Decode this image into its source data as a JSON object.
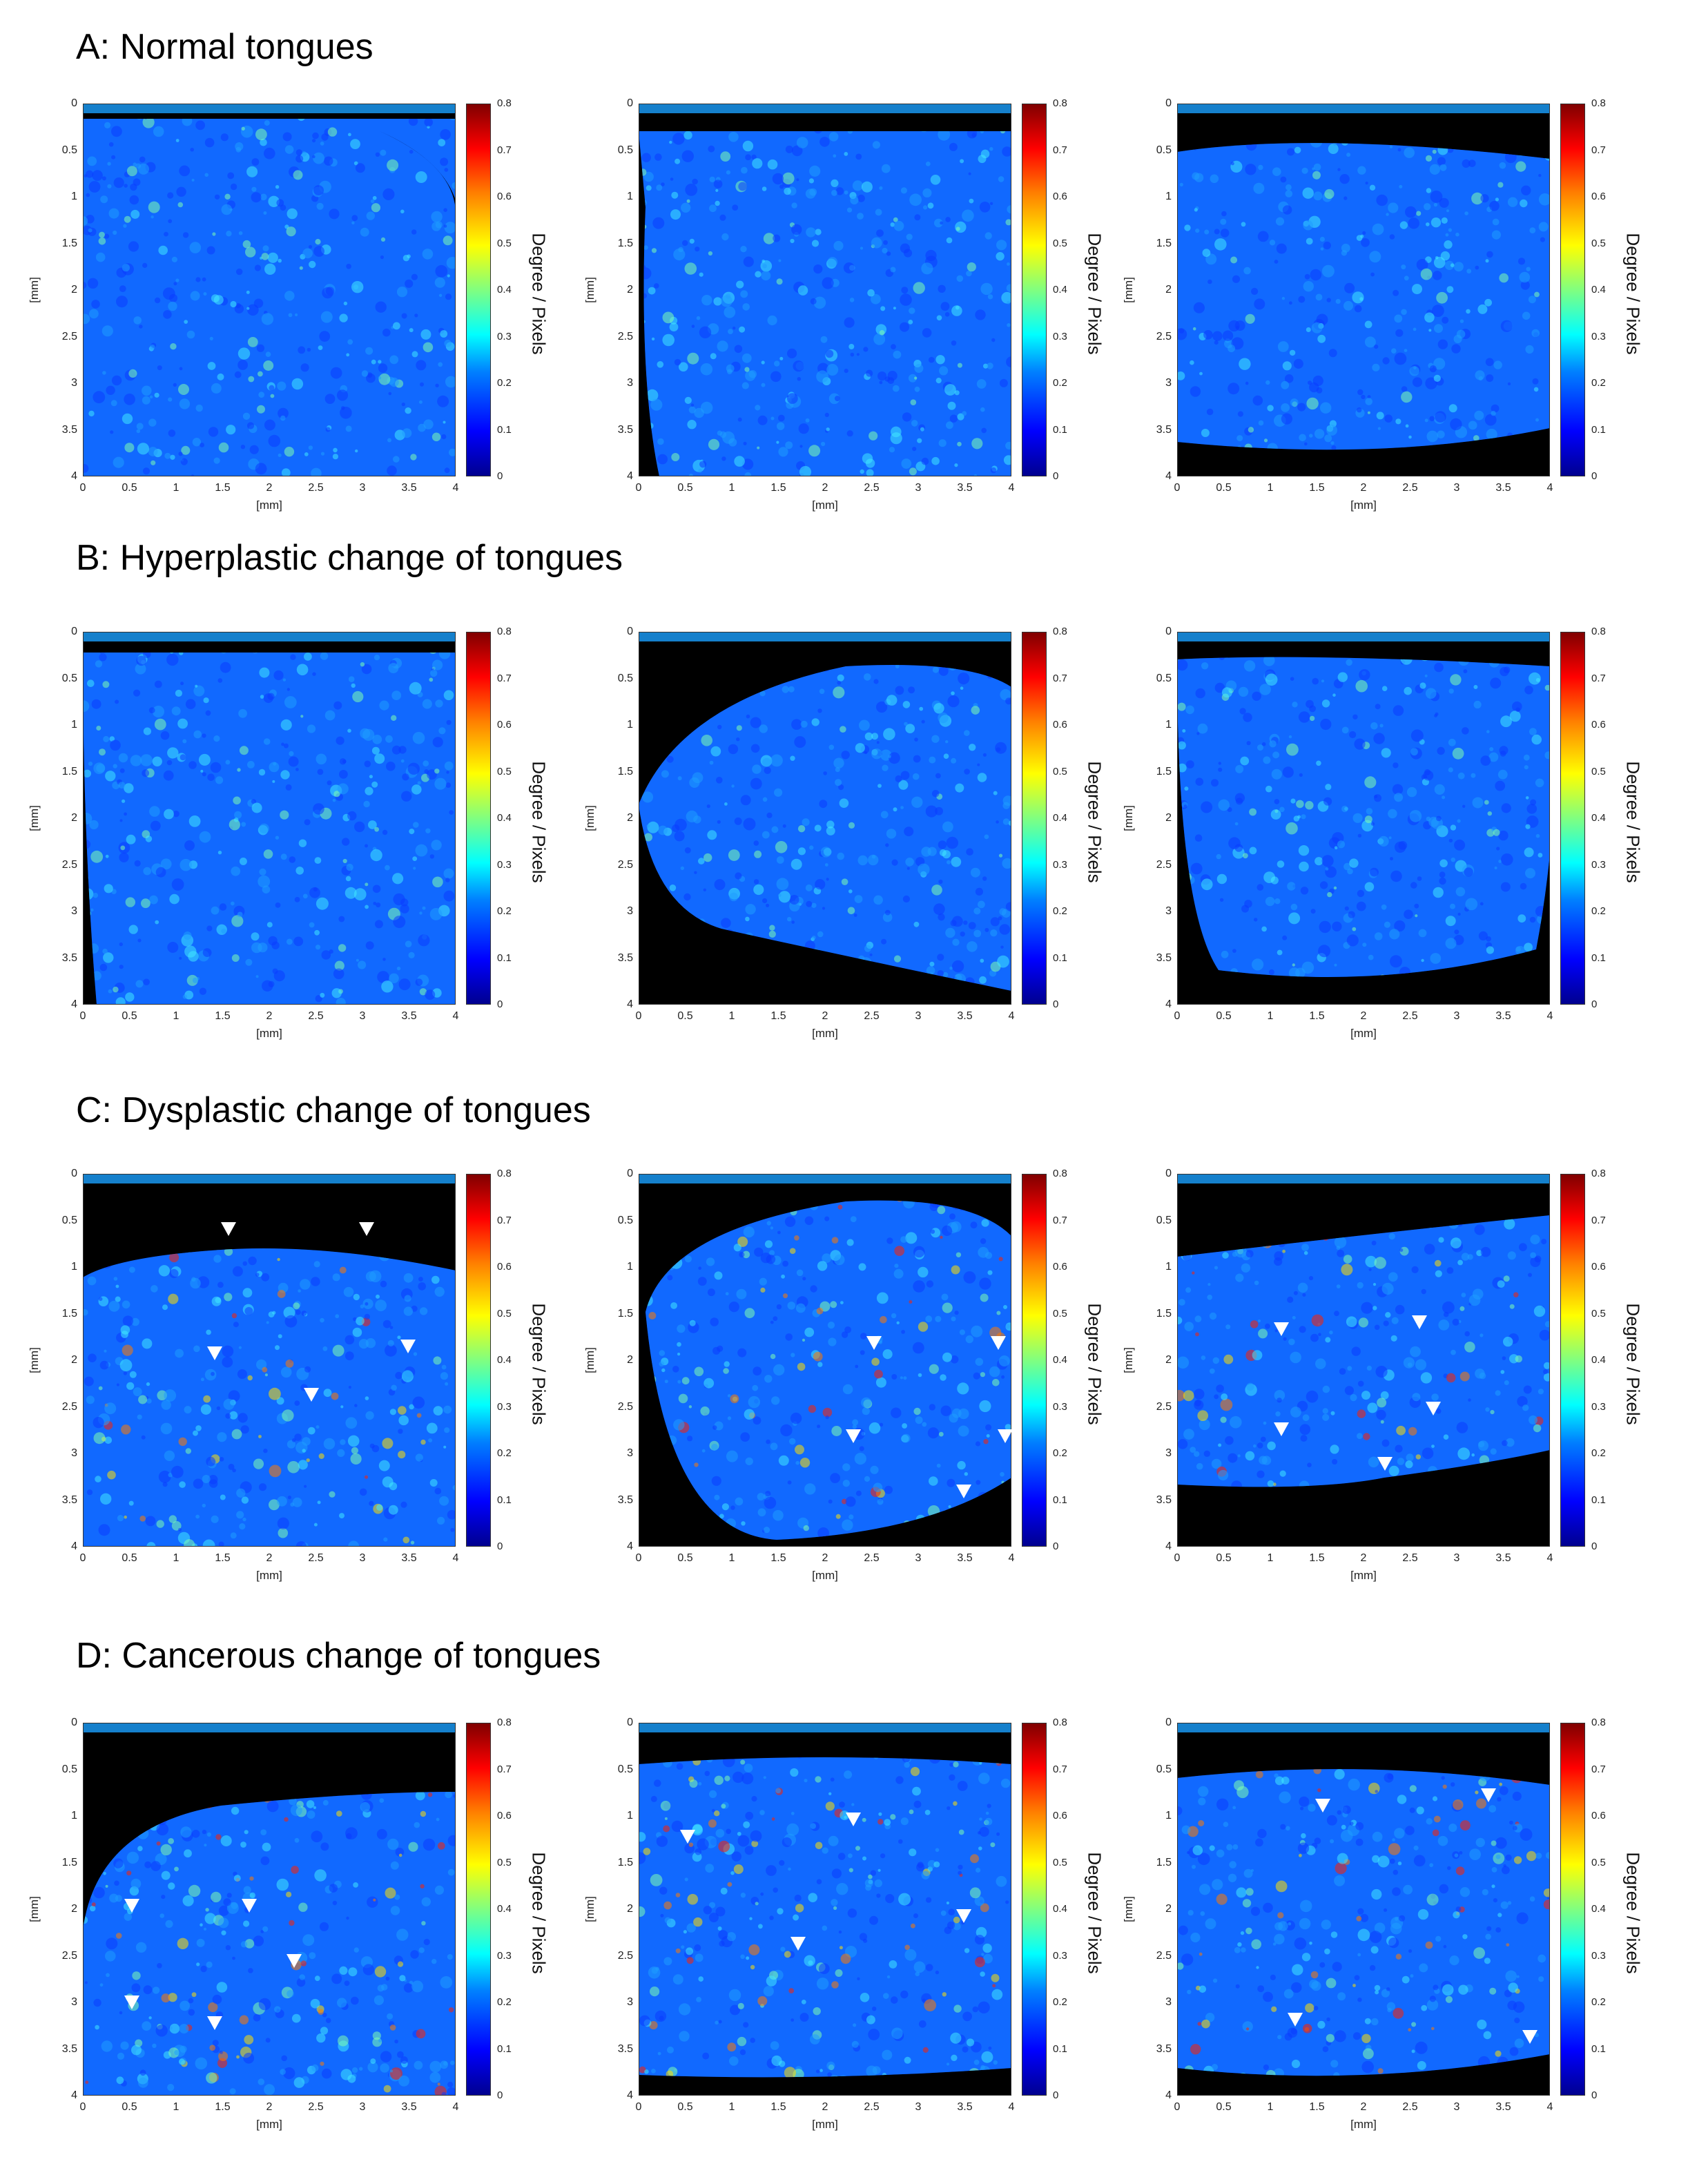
{
  "sections": [
    {
      "title": "A: Normal tongues"
    },
    {
      "title": "B: Hyperplastic change of tongues"
    },
    {
      "title": "C: Dysplastic change of tongues"
    },
    {
      "title": "D: Cancerous change of tongues"
    }
  ],
  "plot": {
    "x_ticks": [
      "0",
      "0.5",
      "1",
      "1.5",
      "2",
      "2.5",
      "3",
      "3.5",
      "4"
    ],
    "y_ticks": [
      "0",
      "0.5",
      "1",
      "1.5",
      "2",
      "2.5",
      "3",
      "3.5",
      "4"
    ],
    "x_label": "[mm]",
    "y_label": "[mm]",
    "colorbar_ticks": [
      "0",
      "0.1",
      "0.2",
      "0.3",
      "0.4",
      "0.5",
      "0.6",
      "0.7",
      "0.8"
    ],
    "colorbar_label": "Degree / Pixels",
    "colorbar_range": [
      0,
      0.8
    ],
    "colormap": "jet"
  },
  "colors": {
    "background": "#000000",
    "tissue_low": "#0a3cff",
    "tissue_mid": "#1aa0ff",
    "tissue_high": "#40ffd0",
    "arrowhead": "#ffffff"
  }
}
